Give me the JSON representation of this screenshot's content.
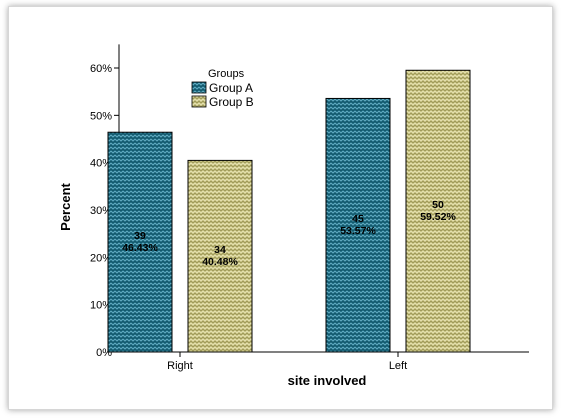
{
  "chart_data": {
    "type": "bar",
    "title": "",
    "xlabel": "site involved",
    "ylabel": "Percent",
    "ylim": [
      0,
      65
    ],
    "y_ticks": [
      "0%",
      "10%",
      "20%",
      "30%",
      "40%",
      "50%",
      "60%"
    ],
    "y_tick_values": [
      0,
      10,
      20,
      30,
      40,
      50,
      60
    ],
    "categories": [
      "Right",
      "Left"
    ],
    "legend": {
      "title": "Groups",
      "placement": "top-left"
    },
    "series": [
      {
        "name": "Group A",
        "color": "#1f6f86",
        "values": [
          46.43,
          53.57
        ],
        "counts": [
          "39",
          "45"
        ],
        "labels": [
          "46.43%",
          "53.57%"
        ]
      },
      {
        "name": "Group B",
        "color": "#c8c381",
        "values": [
          40.48,
          59.52
        ],
        "counts": [
          "34",
          "50"
        ],
        "labels": [
          "40.48%",
          "59.52%"
        ]
      }
    ],
    "grid": false
  }
}
